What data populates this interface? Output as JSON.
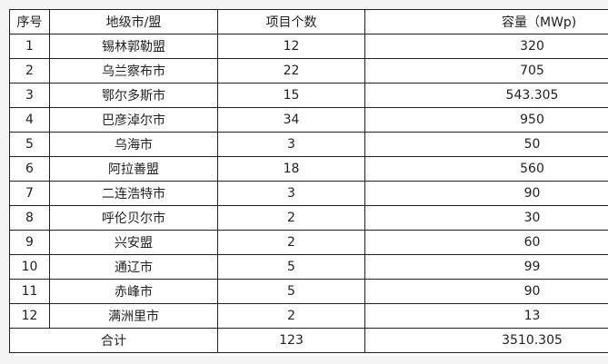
{
  "headers": [
    "序号",
    "地级市/盟",
    "项目个数",
    "容量（MWp)"
  ],
  "rows": [
    [
      "1",
      "锡林郭勒盟",
      "12",
      "320"
    ],
    [
      "2",
      "乌兰察布市",
      "22",
      "705"
    ],
    [
      "3",
      "鄂尔多斯市",
      "15",
      "543.305"
    ],
    [
      "4",
      "巴彦淖尔市",
      "34",
      "950"
    ],
    [
      "5",
      "乌海市",
      "3",
      "50"
    ],
    [
      "6",
      "阿拉善盟",
      "18",
      "560"
    ],
    [
      "7",
      "二连浩特市",
      "3",
      "90"
    ],
    [
      "8",
      "呼伦贝尔市",
      "2",
      "30"
    ],
    [
      "9",
      "兴安盟",
      "2",
      "60"
    ],
    [
      "10",
      "通辽市",
      "5",
      "99"
    ],
    [
      "11",
      "赤峰市",
      "5",
      "90"
    ],
    [
      "12",
      "满洲里市",
      "2",
      "13"
    ]
  ],
  "total": {
    "label": "合计",
    "count": "123",
    "capacity": "3510.305"
  }
}
